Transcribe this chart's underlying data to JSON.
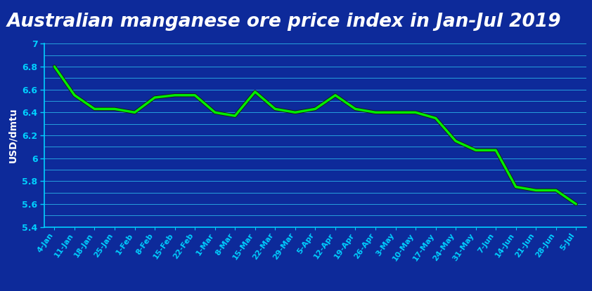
{
  "title": "Australian manganese ore price index in Jan-Jul 2019",
  "ylabel": "USD/dmtu",
  "ylim": [
    5.4,
    7.0
  ],
  "yticks": [
    5.4,
    5.6,
    5.8,
    6.0,
    6.2,
    6.4,
    6.6,
    6.8,
    7.0
  ],
  "fig_bg_color": "#0d2a9a",
  "plot_bg_color": "#0d2a9a",
  "title_bg_color": "#1479d4",
  "grid_color": "#2ab5e8",
  "line_color": "#00ee00",
  "shadow_color": "#1a1a1a",
  "x_labels": [
    "4-Jan",
    "11-Jan",
    "18-Jan",
    "25-Jan",
    "1-Feb",
    "8-Feb",
    "15-Feb",
    "22-Feb",
    "1-Mar",
    "8-Mar",
    "15-Mar",
    "22-Mar",
    "29-Mar",
    "5-Apr",
    "12-Apr",
    "19-Apr",
    "26-Apr",
    "3-May",
    "10-May",
    "17-May",
    "24-May",
    "31-May",
    "7-Jun",
    "14-Jun",
    "21-Jun",
    "28-Jun",
    "5-Jul"
  ],
  "values": [
    6.8,
    6.55,
    6.43,
    6.43,
    6.4,
    6.53,
    6.55,
    6.55,
    6.4,
    6.37,
    6.58,
    6.43,
    6.4,
    6.43,
    6.55,
    6.43,
    6.4,
    6.4,
    6.4,
    6.35,
    6.15,
    6.07,
    6.07,
    5.75,
    5.72,
    5.72,
    5.6
  ],
  "title_fontsize": 19,
  "tick_label_fontsize": 8,
  "ylabel_fontsize": 10,
  "ytick_fontsize": 9,
  "tick_color": "#00cfff",
  "text_color": "#ffffff"
}
